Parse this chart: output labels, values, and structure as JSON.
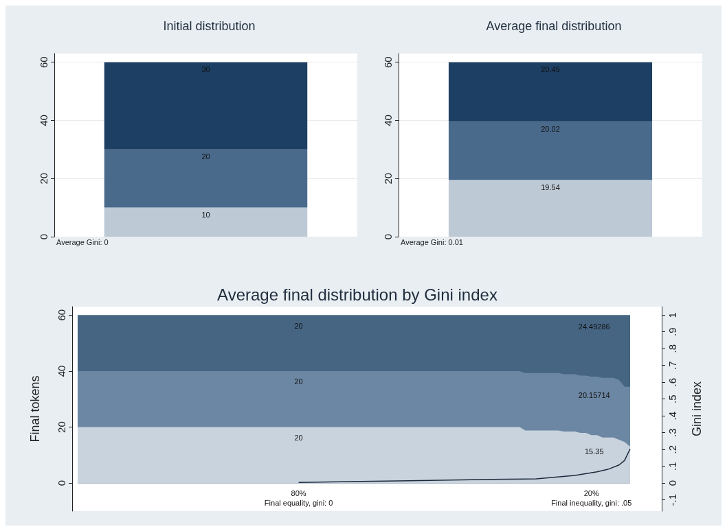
{
  "chart_data": [
    {
      "type": "bar",
      "title": "Initial distribution",
      "categories": [
        null
      ],
      "stacked": true,
      "data_labels": true,
      "grid": "y",
      "ylim": [
        0,
        63
      ],
      "yticks": [
        0,
        20,
        40,
        60
      ],
      "series": [
        {
          "color": "#bdc9d5",
          "values": [
            10
          ]
        },
        {
          "color": "#4a6a8c",
          "values": [
            20
          ]
        },
        {
          "color": "#1d3f63",
          "values": [
            30
          ]
        }
      ],
      "annotations": [
        "Average Gini: 0"
      ]
    },
    {
      "type": "bar",
      "title": "Average final distribution",
      "categories": [
        null
      ],
      "stacked": true,
      "data_labels": true,
      "grid": "y",
      "ylim": [
        0,
        63
      ],
      "yticks": [
        0,
        20,
        40,
        60
      ],
      "series": [
        {
          "color": "#bdc9d5",
          "values": [
            19.54
          ]
        },
        {
          "color": "#4a6a8c",
          "values": [
            20.02
          ]
        },
        {
          "color": "#1d3f63",
          "values": [
            20.45
          ]
        }
      ],
      "annotations": [
        "Average Gini: 0.01"
      ]
    },
    {
      "type": "area",
      "title": "Average final distribution by Gini index",
      "ylabel": "Final tokens",
      "y2label": "Gini index",
      "stacked": true,
      "grid": "y",
      "ylim": [
        -10,
        63
      ],
      "yticks": [
        0,
        20,
        40,
        60
      ],
      "y2lim": [
        -0.1667,
        1.05
      ],
      "y2ticks": [
        {
          "value": -0.1,
          "label": "-.1"
        },
        {
          "value": 0,
          "label": "0"
        },
        {
          "value": 0.1,
          "label": ".1"
        },
        {
          "value": 0.2,
          "label": ".2"
        },
        {
          "value": 0.3,
          "label": ".3"
        },
        {
          "value": 0.4,
          "label": ".4"
        },
        {
          "value": 0.5,
          "label": ".5"
        },
        {
          "value": 0.6,
          "label": ".6"
        },
        {
          "value": 0.7,
          "label": ".7"
        },
        {
          "value": 0.8,
          "label": ".8"
        },
        {
          "value": 0.9,
          "label": ".9"
        },
        {
          "value": 1,
          "label": "1"
        }
      ],
      "categories": [
        null,
        null,
        null,
        null,
        null,
        null,
        null,
        null,
        null,
        null,
        null,
        null,
        null,
        null,
        null,
        null,
        null,
        null,
        null,
        null,
        null,
        null,
        null,
        null,
        null,
        null,
        null,
        null,
        null,
        null,
        null,
        null,
        null,
        null,
        null,
        null,
        null,
        null,
        null,
        null,
        "80%\nFinal equality, gini: 0",
        null,
        null,
        null,
        null,
        null,
        null,
        null,
        null,
        null,
        null,
        null,
        null,
        null,
        null,
        null,
        null,
        null,
        null,
        null,
        null,
        null,
        null,
        null,
        null,
        null,
        null,
        null,
        null,
        null,
        null,
        null,
        null,
        null,
        null,
        null,
        null,
        null,
        null,
        null,
        null,
        null,
        null,
        null,
        null,
        null,
        null,
        null,
        null,
        null,
        null,
        null,
        null,
        "20%\nFinal inequality, gini: .05",
        null,
        null,
        null,
        null,
        null,
        null,
        null
      ],
      "series": [
        {
          "color": "#c9d3de",
          "value_labels": [
            null,
            null,
            null,
            null,
            null,
            null,
            null,
            null,
            null,
            null,
            null,
            null,
            null,
            null,
            null,
            null,
            null,
            null,
            null,
            null,
            null,
            null,
            null,
            null,
            null,
            null,
            null,
            null,
            null,
            null,
            null,
            null,
            null,
            null,
            null,
            null,
            null,
            null,
            null,
            null,
            "20",
            null,
            null,
            null,
            null,
            null,
            null,
            null,
            null,
            null,
            null,
            null,
            null,
            null,
            null,
            null,
            null,
            null,
            null,
            null,
            null,
            null,
            null,
            null,
            null,
            null,
            null,
            null,
            null,
            null,
            null,
            null,
            null,
            null,
            null,
            null,
            null,
            null,
            null,
            null,
            null,
            null,
            null,
            null,
            null,
            null,
            null,
            null,
            null,
            null,
            null,
            null,
            null,
            null,
            null,
            null,
            null,
            null,
            null,
            null,
            null
          ],
          "values": [
            20,
            20,
            20,
            20,
            20,
            20,
            20,
            20,
            20,
            20,
            20,
            20,
            20,
            20,
            20,
            20,
            20,
            20,
            20,
            20,
            20,
            20,
            20,
            20,
            20,
            20,
            20,
            20,
            20,
            20,
            20,
            20,
            20,
            20,
            20,
            20,
            20,
            20,
            20,
            20,
            20,
            20,
            20,
            20,
            20,
            20,
            20,
            20,
            20,
            20,
            20,
            20,
            20,
            20,
            20,
            20,
            20,
            20,
            20,
            20,
            20,
            20,
            20,
            20,
            20,
            20,
            20,
            20,
            20,
            20,
            20,
            20,
            20,
            20,
            20,
            20,
            20,
            20,
            20,
            20,
            20,
            18.8,
            18.8,
            18.8,
            18.8,
            18.8,
            18.8,
            18.8,
            18.4,
            18.4,
            18.4,
            17.9,
            17.9,
            17.1,
            17.1,
            16.3,
            16.3,
            16.3,
            15.5,
            14.7,
            13
          ]
        },
        {
          "color": "#6c87a4",
          "value_labels": [
            null,
            null,
            null,
            null,
            null,
            null,
            null,
            null,
            null,
            null,
            null,
            null,
            null,
            null,
            null,
            null,
            null,
            null,
            null,
            null,
            null,
            null,
            null,
            null,
            null,
            null,
            null,
            null,
            null,
            null,
            null,
            null,
            null,
            null,
            null,
            null,
            null,
            null,
            null,
            null,
            "20",
            null,
            null,
            null,
            null,
            null,
            null,
            null,
            null,
            null,
            null,
            null,
            null,
            null,
            null,
            null,
            null,
            null,
            null,
            null,
            null,
            null,
            null,
            null,
            null,
            null,
            null,
            null,
            null,
            null,
            null,
            null,
            null,
            null,
            null,
            null,
            null,
            null,
            null,
            null,
            null,
            null,
            null,
            null,
            null,
            null,
            null,
            null,
            null,
            null,
            null,
            null,
            null,
            null,
            null,
            null,
            null,
            null,
            null,
            null,
            null
          ],
          "values": [
            20,
            20,
            20,
            20,
            20,
            20,
            20,
            20,
            20,
            20,
            20,
            20,
            20,
            20,
            20,
            20,
            20,
            20,
            20,
            20,
            20,
            20,
            20,
            20,
            20,
            20,
            20,
            20,
            20,
            20,
            20,
            20,
            20,
            20,
            20,
            20,
            20,
            20,
            20,
            20,
            20,
            20,
            20,
            20,
            20,
            20,
            20,
            20,
            20,
            20,
            20,
            20,
            20,
            20,
            20,
            20,
            20,
            20,
            20,
            20,
            20,
            20,
            20,
            20,
            20,
            20,
            20,
            20,
            20,
            20,
            20,
            20,
            20,
            20,
            20,
            20,
            20,
            20,
            20,
            20,
            20,
            20.5,
            20.5,
            20.5,
            20.5,
            20.5,
            20.5,
            20.5,
            20.5,
            20.5,
            20.5,
            20.5,
            20.5,
            20.9,
            20.9,
            21.3,
            21.3,
            21.3,
            21.3,
            19.7,
            21.4
          ]
        },
        {
          "color": "#456583",
          "value_labels": [
            null,
            null,
            null,
            null,
            null,
            null,
            null,
            null,
            null,
            null,
            null,
            null,
            null,
            null,
            null,
            null,
            null,
            null,
            null,
            null,
            null,
            null,
            null,
            null,
            null,
            null,
            null,
            null,
            null,
            null,
            null,
            null,
            null,
            null,
            null,
            null,
            null,
            null,
            null,
            null,
            "20",
            null,
            null,
            null,
            null,
            null,
            null,
            null,
            null,
            null,
            null,
            null,
            null,
            null,
            null,
            null,
            null,
            null,
            null,
            null,
            null,
            null,
            null,
            null,
            null,
            null,
            null,
            null,
            null,
            null,
            null,
            null,
            null,
            null,
            null,
            null,
            null,
            null,
            null,
            null,
            null,
            null,
            null,
            null,
            null,
            null,
            null,
            null,
            null,
            null,
            null,
            null,
            null,
            null,
            null,
            null,
            null,
            null,
            null,
            null,
            null
          ],
          "values": [
            20,
            20,
            20,
            20,
            20,
            20,
            20,
            20,
            20,
            20,
            20,
            20,
            20,
            20,
            20,
            20,
            20,
            20,
            20,
            20,
            20,
            20,
            20,
            20,
            20,
            20,
            20,
            20,
            20,
            20,
            20,
            20,
            20,
            20,
            20,
            20,
            20,
            20,
            20,
            20,
            20,
            20,
            20,
            20,
            20,
            20,
            20,
            20,
            20,
            20,
            20,
            20,
            20,
            20,
            20,
            20,
            20,
            20,
            20,
            20,
            20,
            20,
            20,
            20,
            20,
            20,
            20,
            20,
            20,
            20,
            20,
            20,
            20,
            20,
            20,
            20,
            20,
            20,
            20,
            20,
            20,
            20.7,
            20.7,
            20.7,
            20.7,
            20.7,
            20.7,
            20.7,
            21.1,
            21.1,
            21.1,
            21.6,
            21.6,
            22,
            22,
            22.4,
            22.4,
            22.4,
            23.2,
            25.6,
            25.6
          ]
        },
        {
          "type": "line",
          "axis": "y2",
          "color": "#1b2a3a",
          "marker": "none",
          "values": [
            null,
            null,
            null,
            null,
            null,
            null,
            null,
            null,
            null,
            null,
            null,
            null,
            null,
            null,
            null,
            null,
            null,
            null,
            null,
            null,
            null,
            null,
            null,
            null,
            null,
            null,
            null,
            null,
            null,
            null,
            null,
            null,
            null,
            null,
            null,
            null,
            null,
            null,
            null,
            null,
            0.004,
            null,
            null,
            null,
            null,
            null,
            null,
            null,
            null,
            null,
            null,
            null,
            null,
            null,
            null,
            null,
            null,
            null,
            null,
            null,
            0.014,
            null,
            null,
            null,
            null,
            null,
            null,
            null,
            null,
            null,
            null,
            null,
            null,
            null,
            null,
            0.022,
            null,
            null,
            null,
            null,
            null,
            null,
            null,
            0.025,
            null,
            null,
            null,
            null,
            null,
            null,
            0.046,
            null,
            null,
            null,
            0.067,
            null,
            0.082,
            null,
            0.108,
            0.135,
            0.204
          ]
        }
      ],
      "annotations": [
        "24.49286",
        "20.15714",
        "15.35"
      ]
    }
  ]
}
